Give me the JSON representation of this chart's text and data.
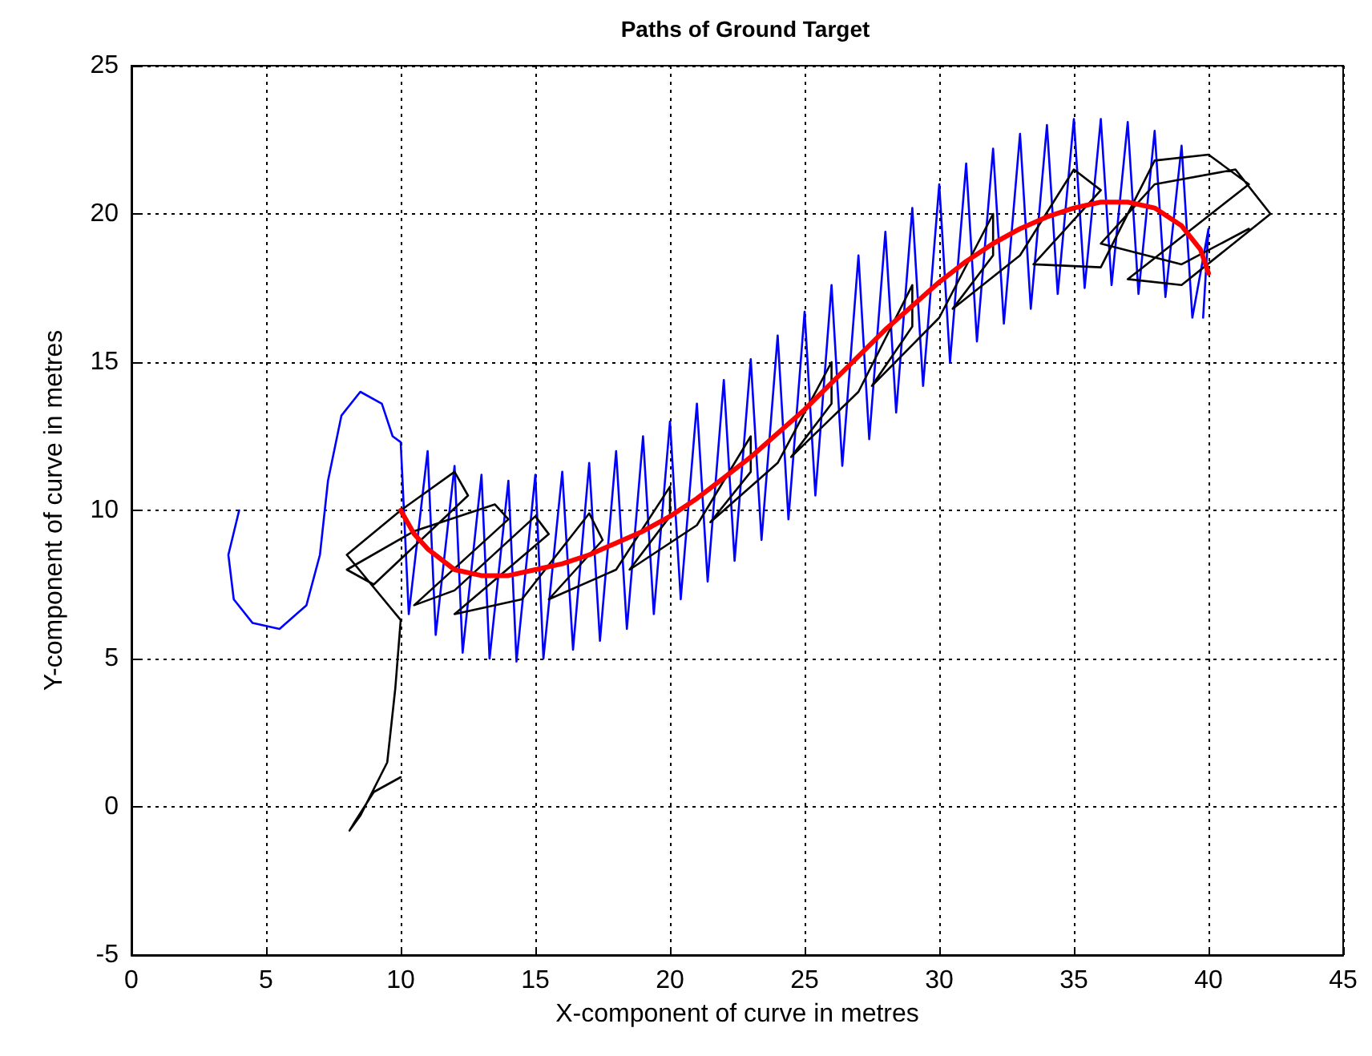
{
  "chart_data": {
    "type": "line",
    "title": "Paths of Ground Target",
    "xlabel": "X-component of curve in metres",
    "ylabel": "Y-component of curve in metres",
    "xlim": [
      0,
      45
    ],
    "xticks": [
      0,
      5,
      10,
      15,
      20,
      25,
      30,
      35,
      40,
      45
    ],
    "ylim": [
      -5,
      25
    ],
    "yticks": [
      -5,
      0,
      5,
      10,
      15,
      20,
      25
    ],
    "grid": true,
    "marker": "none",
    "line_style": "solid",
    "series": [
      {
        "color": "#0000ff",
        "x": [
          4,
          3.6,
          3.8,
          4.5,
          5.5,
          6.5,
          7,
          7.3,
          7.8,
          8.5,
          9.3,
          9.7,
          10,
          10.3,
          11,
          11.3,
          12,
          12.3,
          13,
          13.3,
          14,
          14.3,
          15,
          15.3,
          16,
          16.4,
          17,
          17.4,
          18,
          18.4,
          19,
          19.4,
          20,
          20.4,
          21,
          21.4,
          22,
          22.4,
          23,
          23.4,
          24,
          24.4,
          25,
          25.4,
          26,
          26.4,
          27,
          27.4,
          28,
          28.4,
          29,
          29.4,
          30,
          30.4,
          31,
          31.4,
          32,
          32.4,
          33,
          33.4,
          34,
          34.4,
          35,
          35.4,
          36,
          36.4,
          37,
          37.4,
          38,
          38.4,
          39,
          39.4,
          40,
          39.8
        ],
        "values": [
          10,
          8.5,
          7,
          6.2,
          6,
          6.8,
          8.5,
          11,
          13.2,
          14,
          13.6,
          12.5,
          12.3,
          6.5,
          12,
          5.8,
          11.5,
          5.2,
          11.2,
          5,
          11,
          4.9,
          11.2,
          5,
          11.3,
          5.3,
          11.6,
          5.6,
          12,
          6,
          12.5,
          6.5,
          13,
          7,
          13.6,
          7.6,
          14.4,
          8.3,
          15.1,
          9,
          15.9,
          9.7,
          16.7,
          10.5,
          17.6,
          11.5,
          18.6,
          12.4,
          19.4,
          13.3,
          20.2,
          14.2,
          21,
          15,
          21.7,
          15.7,
          22.2,
          16.3,
          22.7,
          16.8,
          23,
          17.3,
          23.2,
          17.5,
          23.2,
          17.6,
          23.1,
          17.3,
          22.8,
          17.2,
          22.3,
          16.5,
          19.5,
          16.5
        ]
      },
      {
        "color": "#000000",
        "x": [
          10,
          9,
          8.3,
          8.1,
          8.5,
          9.5,
          9.8,
          10,
          8,
          10,
          12,
          12.5,
          9,
          8,
          10.5,
          13.5,
          14,
          10.5,
          12,
          15,
          15.5,
          12,
          14.5,
          17,
          17.5,
          15.5,
          18,
          20,
          20,
          18.5,
          21,
          23,
          23,
          21.5,
          24,
          26,
          26,
          24.5,
          27,
          29,
          29,
          27.5,
          30,
          32,
          32,
          30.5,
          33,
          35,
          36,
          33.5,
          36,
          38,
          40,
          41.5,
          37,
          39,
          42.3,
          41,
          38,
          36,
          39,
          41.5
        ],
        "values": [
          1,
          0.5,
          -0.5,
          -0.8,
          -0.3,
          1.5,
          4,
          6.3,
          8.5,
          10,
          11.3,
          10.5,
          7.5,
          8,
          9.3,
          10.2,
          9.7,
          6.8,
          7.3,
          9.8,
          9.2,
          6.5,
          7,
          9.9,
          9,
          7,
          8,
          10.8,
          9.8,
          8,
          9.5,
          12.5,
          11.3,
          9.6,
          11.6,
          15,
          13.6,
          11.8,
          14,
          17.6,
          16.2,
          14.2,
          16.5,
          20,
          18.6,
          16.8,
          18.6,
          21.5,
          20.8,
          18.3,
          18.2,
          21.8,
          22,
          21,
          17.8,
          17.6,
          20,
          21.5,
          21,
          19,
          18.3,
          19.5
        ]
      },
      {
        "color": "#ff0000",
        "x": [
          10,
          10.5,
          11,
          12,
          13,
          14,
          15,
          16,
          17,
          18,
          19,
          20,
          21,
          22,
          23,
          24,
          25,
          26,
          27,
          28,
          29,
          30,
          31,
          32,
          33,
          34,
          35,
          36,
          37,
          38,
          39,
          39.7,
          40
        ],
        "values": [
          10,
          9.2,
          8.7,
          8,
          7.8,
          7.8,
          8,
          8.2,
          8.5,
          8.9,
          9.3,
          9.8,
          10.4,
          11.1,
          11.8,
          12.6,
          13.4,
          14.3,
          15.2,
          16.1,
          16.9,
          17.7,
          18.4,
          19,
          19.5,
          19.9,
          20.2,
          20.4,
          20.4,
          20.2,
          19.6,
          18.8,
          18
        ]
      }
    ]
  }
}
